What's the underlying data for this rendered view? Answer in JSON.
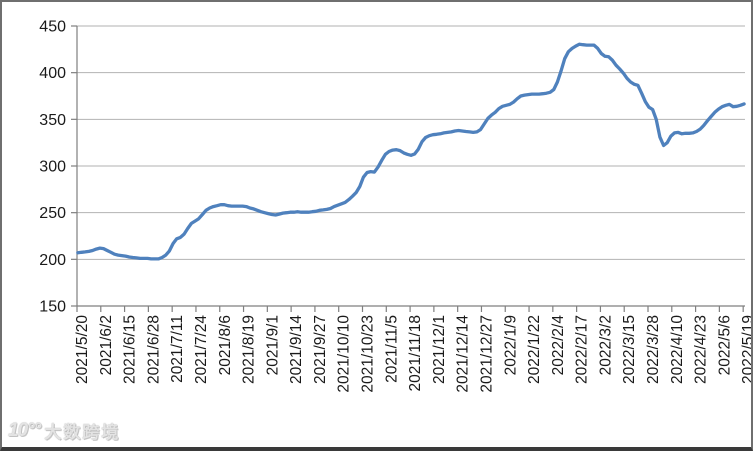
{
  "watermark": {
    "logo": "10°°",
    "text": "大数跨境"
  },
  "chart_data": {
    "type": "line",
    "title": "",
    "xlabel": "",
    "ylabel": "",
    "ylim": [
      150,
      450
    ],
    "y_ticks": [
      150,
      200,
      250,
      300,
      350,
      400,
      450
    ],
    "x_range_days": 365,
    "x_tick_interval_days": 13,
    "x_tick_labels": [
      "2021/5/20",
      "2021/6/2",
      "2021/6/15",
      "2021/6/28",
      "2021/7/11",
      "2021/7/24",
      "2021/8/6",
      "2021/8/19",
      "2021/9/1",
      "2021/9/14",
      "2021/9/27",
      "2021/10/10",
      "2021/10/23",
      "2021/11/5",
      "2021/11/18",
      "2021/12/1",
      "2021/12/14",
      "2021/12/27",
      "2022/1/9",
      "2022/1/22",
      "2022/2/4",
      "2022/2/17",
      "2022/3/2",
      "2022/3/15",
      "2022/3/28",
      "2022/4/10",
      "2022/4/23",
      "2022/5/6",
      "2022/5/19"
    ],
    "grid": true,
    "legend": "none",
    "axis_color": "#7f7f7f",
    "gridline_color": "#b2b2b2",
    "label_color": "#1a1a1a",
    "series": [
      {
        "name": "",
        "color": "#4F81BD",
        "points": [
          [
            0,
            207
          ],
          [
            2,
            207.5
          ],
          [
            4,
            208
          ],
          [
            6,
            208.5
          ],
          [
            8,
            209.5
          ],
          [
            10,
            211
          ],
          [
            12,
            212
          ],
          [
            14,
            211.5
          ],
          [
            16,
            209.5
          ],
          [
            18,
            207.5
          ],
          [
            20,
            205.5
          ],
          [
            22,
            204.5
          ],
          [
            24,
            204
          ],
          [
            26,
            203.5
          ],
          [
            28,
            202.5
          ],
          [
            30,
            202
          ],
          [
            32,
            201.5
          ],
          [
            34,
            201
          ],
          [
            36,
            201
          ],
          [
            38,
            201
          ],
          [
            40,
            200.5
          ],
          [
            42,
            200.5
          ],
          [
            44,
            200.5
          ],
          [
            46,
            202
          ],
          [
            48,
            204.5
          ],
          [
            50,
            209
          ],
          [
            52,
            217
          ],
          [
            54,
            222
          ],
          [
            56,
            223.5
          ],
          [
            58,
            227
          ],
          [
            60,
            233
          ],
          [
            62,
            238.5
          ],
          [
            64,
            241
          ],
          [
            66,
            243.5
          ],
          [
            68,
            248
          ],
          [
            70,
            252.5
          ],
          [
            72,
            255
          ],
          [
            74,
            256.5
          ],
          [
            76,
            257.5
          ],
          [
            78,
            258.5
          ],
          [
            80,
            258.5
          ],
          [
            82,
            257.5
          ],
          [
            84,
            257
          ],
          [
            86,
            257
          ],
          [
            88,
            257
          ],
          [
            90,
            257
          ],
          [
            92,
            256.5
          ],
          [
            94,
            255
          ],
          [
            96,
            254
          ],
          [
            98,
            252.5
          ],
          [
            100,
            251
          ],
          [
            102,
            250
          ],
          [
            104,
            249
          ],
          [
            106,
            248
          ],
          [
            108,
            247.5
          ],
          [
            110,
            248.5
          ],
          [
            112,
            249.5
          ],
          [
            114,
            250
          ],
          [
            116,
            250.5
          ],
          [
            118,
            250.5
          ],
          [
            120,
            251
          ],
          [
            122,
            250.5
          ],
          [
            124,
            250.5
          ],
          [
            126,
            250.5
          ],
          [
            128,
            251
          ],
          [
            130,
            251.5
          ],
          [
            132,
            252.5
          ],
          [
            134,
            253
          ],
          [
            136,
            253.5
          ],
          [
            138,
            254.5
          ],
          [
            140,
            256.5
          ],
          [
            142,
            258
          ],
          [
            144,
            259.5
          ],
          [
            146,
            261
          ],
          [
            148,
            264
          ],
          [
            150,
            267.5
          ],
          [
            152,
            271.5
          ],
          [
            154,
            278
          ],
          [
            156,
            288
          ],
          [
            158,
            293
          ],
          [
            160,
            294
          ],
          [
            162,
            293.5
          ],
          [
            164,
            299
          ],
          [
            166,
            306
          ],
          [
            168,
            312.5
          ],
          [
            170,
            315.5
          ],
          [
            172,
            317
          ],
          [
            174,
            317.5
          ],
          [
            176,
            316.5
          ],
          [
            178,
            314
          ],
          [
            180,
            312.5
          ],
          [
            182,
            311.5
          ],
          [
            184,
            313
          ],
          [
            186,
            318
          ],
          [
            188,
            326
          ],
          [
            190,
            330.5
          ],
          [
            192,
            332.5
          ],
          [
            194,
            333.5
          ],
          [
            196,
            334
          ],
          [
            198,
            334.5
          ],
          [
            200,
            335.5
          ],
          [
            202,
            336
          ],
          [
            204,
            336.5
          ],
          [
            206,
            337.5
          ],
          [
            208,
            338
          ],
          [
            210,
            337.5
          ],
          [
            212,
            337
          ],
          [
            214,
            336.5
          ],
          [
            216,
            336
          ],
          [
            218,
            336.5
          ],
          [
            220,
            339
          ],
          [
            222,
            345
          ],
          [
            224,
            351
          ],
          [
            226,
            354.5
          ],
          [
            228,
            357.5
          ],
          [
            230,
            361.5
          ],
          [
            232,
            364
          ],
          [
            234,
            365
          ],
          [
            236,
            366
          ],
          [
            238,
            368.5
          ],
          [
            240,
            372
          ],
          [
            242,
            375
          ],
          [
            244,
            376
          ],
          [
            246,
            376.5
          ],
          [
            248,
            377
          ],
          [
            250,
            377
          ],
          [
            252,
            377
          ],
          [
            254,
            377.5
          ],
          [
            256,
            378
          ],
          [
            258,
            379
          ],
          [
            260,
            382
          ],
          [
            262,
            390
          ],
          [
            264,
            402
          ],
          [
            266,
            415
          ],
          [
            268,
            422.5
          ],
          [
            270,
            426
          ],
          [
            272,
            428.5
          ],
          [
            274,
            430.5
          ],
          [
            276,
            430
          ],
          [
            278,
            429.5
          ],
          [
            280,
            429.5
          ],
          [
            282,
            429.5
          ],
          [
            284,
            426
          ],
          [
            286,
            420.5
          ],
          [
            288,
            417.5
          ],
          [
            290,
            417
          ],
          [
            292,
            413.5
          ],
          [
            294,
            408
          ],
          [
            296,
            404
          ],
          [
            298,
            399.5
          ],
          [
            300,
            394
          ],
          [
            302,
            390
          ],
          [
            304,
            387.5
          ],
          [
            306,
            386.5
          ],
          [
            308,
            378
          ],
          [
            310,
            369
          ],
          [
            312,
            363
          ],
          [
            314,
            360.5
          ],
          [
            316,
            350
          ],
          [
            318,
            331
          ],
          [
            320,
            322
          ],
          [
            322,
            325
          ],
          [
            324,
            332
          ],
          [
            326,
            335.5
          ],
          [
            328,
            336
          ],
          [
            330,
            334.5
          ],
          [
            332,
            335
          ],
          [
            334,
            335
          ],
          [
            336,
            335.5
          ],
          [
            338,
            337
          ],
          [
            340,
            339.5
          ],
          [
            342,
            343.5
          ],
          [
            344,
            348.5
          ],
          [
            346,
            353
          ],
          [
            348,
            357.5
          ],
          [
            350,
            361
          ],
          [
            352,
            363.5
          ],
          [
            354,
            365
          ],
          [
            356,
            366
          ],
          [
            358,
            363.5
          ],
          [
            360,
            364
          ],
          [
            362,
            365
          ],
          [
            364,
            366.5
          ]
        ]
      }
    ]
  }
}
